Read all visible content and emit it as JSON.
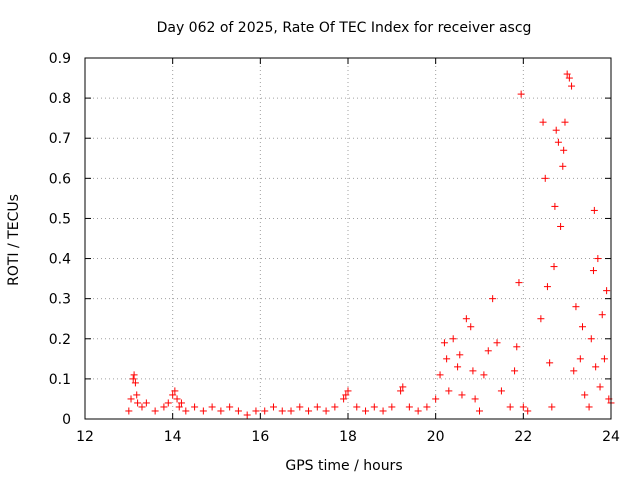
{
  "chart_data": {
    "type": "scatter",
    "title": "Day 062 of 2025, Rate Of TEC Index for receiver ascg",
    "xlabel": "GPS time / hours",
    "ylabel": "ROTI / TECUs",
    "xlim": [
      12,
      24
    ],
    "ylim": [
      0,
      0.9
    ],
    "xticks": [
      12,
      14,
      16,
      18,
      20,
      22,
      24
    ],
    "yticks": [
      0,
      0.1,
      0.2,
      0.3,
      0.4,
      0.5,
      0.6,
      0.7,
      0.8,
      0.9
    ],
    "grid": true,
    "marker": "plus",
    "color": "#ff0000",
    "series": [
      {
        "name": "ROTI",
        "x": [
          13.0,
          13.05,
          13.1,
          13.12,
          13.15,
          13.18,
          13.2,
          13.3,
          13.4,
          13.6,
          13.8,
          13.9,
          14.0,
          14.05,
          14.1,
          14.15,
          14.2,
          14.3,
          14.5,
          14.7,
          14.9,
          15.1,
          15.3,
          15.5,
          15.7,
          15.9,
          16.1,
          16.3,
          16.5,
          16.7,
          16.9,
          17.1,
          17.3,
          17.5,
          17.7,
          17.9,
          17.95,
          18.0,
          18.2,
          18.4,
          18.6,
          18.8,
          19.0,
          19.2,
          19.25,
          19.4,
          19.6,
          19.8,
          20.0,
          20.1,
          20.2,
          20.25,
          20.3,
          20.4,
          20.5,
          20.55,
          20.6,
          20.7,
          20.8,
          20.85,
          20.9,
          21.0,
          21.1,
          21.2,
          21.3,
          21.4,
          21.5,
          21.7,
          21.8,
          21.85,
          21.9,
          21.95,
          22.0,
          22.1,
          22.4,
          22.45,
          22.5,
          22.55,
          22.6,
          22.65,
          22.7,
          22.72,
          22.75,
          22.8,
          22.85,
          22.9,
          22.92,
          22.95,
          23.0,
          23.05,
          23.1,
          23.15,
          23.2,
          23.3,
          23.35,
          23.4,
          23.5,
          23.55,
          23.6,
          23.62,
          23.65,
          23.7,
          23.75,
          23.8,
          23.85,
          23.9,
          23.95,
          24.0
        ],
        "values": [
          0.02,
          0.05,
          0.1,
          0.11,
          0.09,
          0.06,
          0.04,
          0.03,
          0.04,
          0.02,
          0.03,
          0.04,
          0.06,
          0.07,
          0.05,
          0.03,
          0.04,
          0.02,
          0.03,
          0.02,
          0.03,
          0.02,
          0.03,
          0.02,
          0.01,
          0.02,
          0.02,
          0.03,
          0.02,
          0.02,
          0.03,
          0.02,
          0.03,
          0.02,
          0.03,
          0.05,
          0.06,
          0.07,
          0.03,
          0.02,
          0.03,
          0.02,
          0.03,
          0.07,
          0.08,
          0.03,
          0.02,
          0.03,
          0.05,
          0.11,
          0.19,
          0.15,
          0.07,
          0.2,
          0.13,
          0.16,
          0.06,
          0.25,
          0.23,
          0.12,
          0.05,
          0.02,
          0.11,
          0.17,
          0.3,
          0.19,
          0.07,
          0.03,
          0.12,
          0.18,
          0.34,
          0.81,
          0.03,
          0.02,
          0.25,
          0.74,
          0.6,
          0.33,
          0.14,
          0.03,
          0.38,
          0.53,
          0.72,
          0.69,
          0.48,
          0.63,
          0.67,
          0.74,
          0.86,
          0.85,
          0.83,
          0.12,
          0.28,
          0.15,
          0.23,
          0.06,
          0.03,
          0.2,
          0.37,
          0.52,
          0.13,
          0.4,
          0.08,
          0.26,
          0.15,
          0.32,
          0.05,
          0.04
        ]
      }
    ]
  }
}
